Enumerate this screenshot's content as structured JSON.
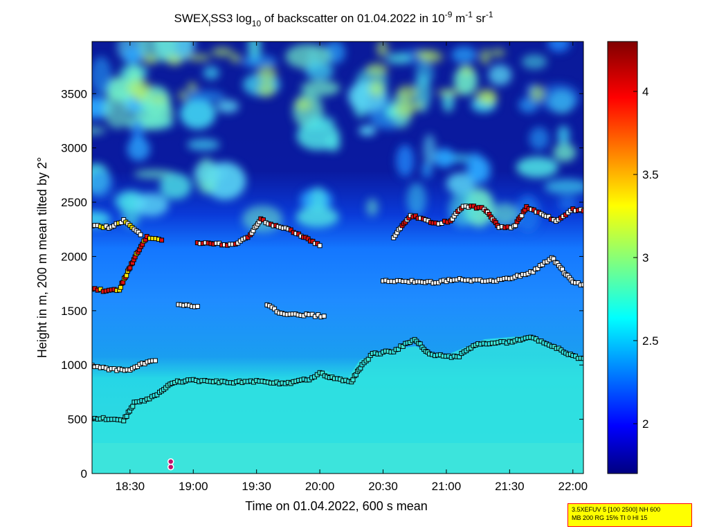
{
  "chart_data": {
    "type": "heatmap",
    "title_parts": {
      "prefix": "SWEX",
      "sub1": "l",
      "mid": "SS3 log",
      "sub2": "10",
      "suffix1": " of backscatter on 01.04.2022 in 10",
      "sup1": "-9",
      "suffix2": " m",
      "sup2": "-1",
      "suffix3": " sr",
      "sup3": "-1"
    },
    "xlabel": "Time on 01.04.2022, 600 s mean",
    "ylabel": "Height in m, 200 m mean tilted by 2°",
    "x_ticks": [
      "18:30",
      "19:00",
      "19:30",
      "20:00",
      "20:30",
      "21:00",
      "21:30",
      "22:00"
    ],
    "x_range": [
      "18:12",
      "22:05"
    ],
    "y_ticks": [
      "0",
      "500",
      "1000",
      "1500",
      "2000",
      "2500",
      "3000",
      "3500"
    ],
    "ylim": [
      0,
      3980
    ],
    "colorbar_ticks": [
      "2",
      "2.5",
      "3",
      "3.5",
      "4"
    ],
    "colorbar_range": [
      1.7,
      4.3
    ],
    "colormap": "jet",
    "mixing_layer_height": [
      {
        "t": "18:12",
        "h": 510
      },
      {
        "t": "18:20",
        "h": 505
      },
      {
        "t": "18:27",
        "h": 490
      },
      {
        "t": "18:32",
        "h": 650
      },
      {
        "t": "18:38",
        "h": 680
      },
      {
        "t": "18:44",
        "h": 740
      },
      {
        "t": "18:50",
        "h": 840
      },
      {
        "t": "19:00",
        "h": 860
      },
      {
        "t": "19:15",
        "h": 840
      },
      {
        "t": "19:30",
        "h": 850
      },
      {
        "t": "19:45",
        "h": 830
      },
      {
        "t": "19:55",
        "h": 870
      },
      {
        "t": "20:00",
        "h": 930
      },
      {
        "t": "20:07",
        "h": 870
      },
      {
        "t": "20:15",
        "h": 850
      },
      {
        "t": "20:20",
        "h": 1000
      },
      {
        "t": "20:25",
        "h": 1100
      },
      {
        "t": "20:35",
        "h": 1130
      },
      {
        "t": "20:45",
        "h": 1240
      },
      {
        "t": "20:52",
        "h": 1100
      },
      {
        "t": "21:05",
        "h": 1070
      },
      {
        "t": "21:15",
        "h": 1200
      },
      {
        "t": "21:30",
        "h": 1210
      },
      {
        "t": "21:40",
        "h": 1260
      },
      {
        "t": "21:50",
        "h": 1180
      },
      {
        "t": "22:00",
        "h": 1080
      },
      {
        "t": "22:05",
        "h": 1060
      }
    ],
    "cloud_base_layer_1": [
      {
        "t": "18:12",
        "h": 1000
      },
      {
        "t": "18:20",
        "h": 960
      },
      {
        "t": "18:30",
        "h": 950
      },
      {
        "t": "18:37",
        "h": 1020
      },
      {
        "t": "18:42",
        "h": 1040
      }
    ],
    "cloud_base_layer_2": [
      {
        "t": "18:12",
        "h": 1700
      },
      {
        "t": "18:20",
        "h": 1680
      },
      {
        "t": "18:25",
        "h": 1700
      },
      {
        "t": "18:30",
        "h": 1900
      },
      {
        "t": "18:33",
        "h": 2020
      },
      {
        "t": "18:38",
        "h": 2180
      },
      {
        "t": "18:45",
        "h": 2150
      }
    ],
    "top_layer": [
      {
        "t": "18:12",
        "h": 2280
      },
      {
        "t": "18:20",
        "h": 2270
      },
      {
        "t": "18:27",
        "h": 2330
      },
      {
        "t": "18:35",
        "h": 2200
      }
    ],
    "residual_layer": [
      {
        "t": "18:53",
        "h": 1560
      },
      {
        "t": "19:02",
        "h": 1540
      }
    ],
    "upper_layer_mid": [
      {
        "t": "19:02",
        "h": 2120
      },
      {
        "t": "19:20",
        "h": 2110
      },
      {
        "t": "19:27",
        "h": 2200
      },
      {
        "t": "19:32",
        "h": 2340
      },
      {
        "t": "19:38",
        "h": 2290
      },
      {
        "t": "19:45",
        "h": 2250
      },
      {
        "t": "19:50",
        "h": 2200
      },
      {
        "t": "20:00",
        "h": 2100
      }
    ],
    "layer_1500": [
      {
        "t": "19:35",
        "h": 1560
      },
      {
        "t": "19:42",
        "h": 1470
      },
      {
        "t": "19:55",
        "h": 1460
      },
      {
        "t": "20:02",
        "h": 1450
      }
    ],
    "layer_1800": [
      {
        "t": "20:30",
        "h": 1780
      },
      {
        "t": "20:45",
        "h": 1770
      },
      {
        "t": "20:55",
        "h": 1760
      },
      {
        "t": "21:05",
        "h": 1790
      },
      {
        "t": "21:20",
        "h": 1770
      },
      {
        "t": "21:30",
        "h": 1800
      },
      {
        "t": "21:40",
        "h": 1850
      },
      {
        "t": "21:50",
        "h": 1990
      },
      {
        "t": "22:00",
        "h": 1760
      },
      {
        "t": "22:05",
        "h": 1740
      }
    ],
    "layer_2400": [
      {
        "t": "20:35",
        "h": 2180
      },
      {
        "t": "20:43",
        "h": 2380
      },
      {
        "t": "20:55",
        "h": 2300
      },
      {
        "t": "21:02",
        "h": 2330
      },
      {
        "t": "21:08",
        "h": 2470
      },
      {
        "t": "21:18",
        "h": 2440
      },
      {
        "t": "21:25",
        "h": 2270
      },
      {
        "t": "21:32",
        "h": 2270
      },
      {
        "t": "21:38",
        "h": 2450
      },
      {
        "t": "21:52",
        "h": 2330
      },
      {
        "t": "22:00",
        "h": 2430
      },
      {
        "t": "22:05",
        "h": 2420
      }
    ]
  },
  "info_box": {
    "line1": "3.5XEFUV 5 [100 2500] NH 600",
    "line2": "MB 200 RG 15% TI 0 HI 15"
  }
}
